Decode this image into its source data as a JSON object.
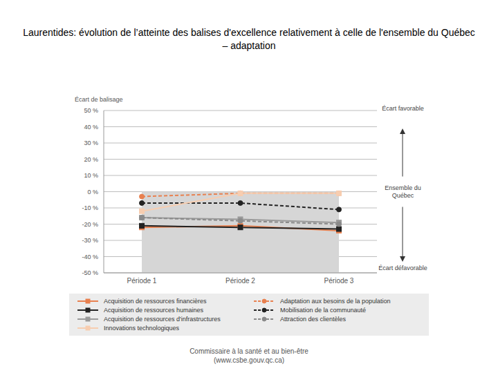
{
  "chart_data": {
    "type": "line",
    "title": "Laurentides: évolution de l’atteinte des balises d'excellence relativement à celle de l'ensemble du Québec – adaptation",
    "y_label": "Écart de balisage",
    "categories": [
      "Période 1",
      "Période 2",
      "Période 3"
    ],
    "series": [
      {
        "name": "Acquisition de ressources financières",
        "color": "#e8804f",
        "line_style": "solid",
        "marker": "square",
        "values": [
          -22,
          -21,
          -24
        ]
      },
      {
        "name": "Adaptation aux besoins de la population",
        "color": "#e8804f",
        "line_style": "dashed",
        "marker": "circle",
        "values": [
          -3,
          -1,
          -1
        ]
      },
      {
        "name": "Acquisition de ressources humaines",
        "color": "#222222",
        "line_style": "solid",
        "marker": "square",
        "values": [
          -21,
          -22,
          -23
        ]
      },
      {
        "name": "Mobilisation de la communauté",
        "color": "#222222",
        "line_style": "dashed",
        "marker": "circle",
        "values": [
          -7,
          -7,
          -11
        ]
      },
      {
        "name": "Acquisition de ressources d'infrastructures",
        "color": "#9a9a9a",
        "line_style": "solid",
        "marker": "square",
        "values": [
          -16,
          -17,
          -19
        ]
      },
      {
        "name": "Attraction des clientèles",
        "color": "#8a8a8a",
        "line_style": "dashed",
        "marker": "circle",
        "values": [
          -16,
          -18,
          -20
        ]
      },
      {
        "name": "Innovations technologiques",
        "color": "#f7cdb0",
        "line_style": "solid",
        "marker": "square",
        "values": [
          -12,
          -1,
          -1
        ]
      }
    ],
    "ylim": [
      -50,
      50
    ],
    "yticks": [
      {
        "value": -50,
        "label": "-50 %"
      },
      {
        "value": -40,
        "label": "-40 %"
      },
      {
        "value": -30,
        "label": "-30 %"
      },
      {
        "value": -20,
        "label": "-20 %"
      },
      {
        "value": -10,
        "label": "-10 %"
      },
      {
        "value": 0,
        "label": "0 %"
      },
      {
        "value": 10,
        "label": "10 %"
      },
      {
        "value": 20,
        "label": "20 %"
      },
      {
        "value": 30,
        "label": "30 %"
      },
      {
        "value": 40,
        "label": "40 %"
      },
      {
        "value": 50,
        "label": "50 %"
      }
    ],
    "grid": true,
    "legend": "bottom",
    "annotations": [
      {
        "text": "Écart favorable"
      },
      {
        "text": "Ensemble du Québec",
        "value": 0
      },
      {
        "text": "Écart défavorable"
      }
    ],
    "footer": [
      "Commissaire à la santé et au bien-être",
      "(www.csbe.gouv.qc.ca)"
    ]
  }
}
